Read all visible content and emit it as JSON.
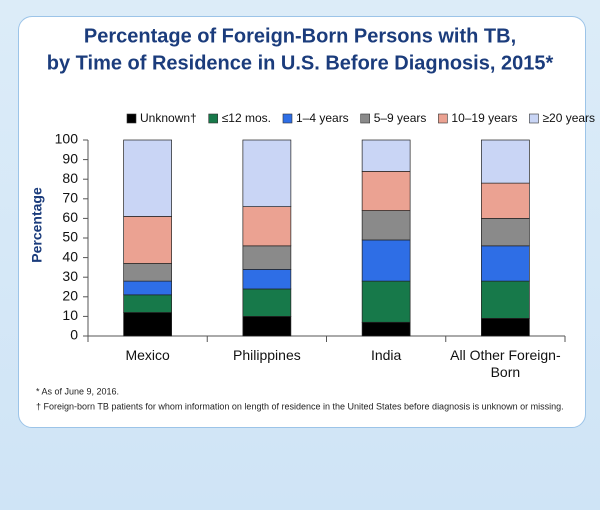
{
  "chart_data": {
    "type": "stacked_bar",
    "title": [
      "Percentage of Foreign-Born Persons with TB,",
      "by Time of Residence in U.S. Before Diagnosis, 2015*"
    ],
    "y_label": "Percentage",
    "categories": [
      "Mexico",
      "Philippines",
      "India",
      "All Other Foreign-Born"
    ],
    "series": [
      {
        "name": "Unknown†",
        "color": "#000000",
        "values": [
          12,
          10,
          7,
          9
        ]
      },
      {
        "name": "≤12 mos.",
        "color": "#17794a",
        "values": [
          9,
          14,
          21,
          19
        ]
      },
      {
        "name": "1–4 years",
        "color": "#2e6ee6",
        "values": [
          7,
          10,
          21,
          18
        ]
      },
      {
        "name": "5–9 years",
        "color": "#8a8a8a",
        "values": [
          9,
          12,
          15,
          14
        ]
      },
      {
        "name": "10–19 years",
        "color": "#eba292",
        "values": [
          24,
          20,
          20,
          18
        ]
      },
      {
        "name": "≥20 years",
        "color": "#c9d5f5",
        "values": [
          39,
          34,
          16,
          22
        ]
      }
    ],
    "ylim": [
      0,
      100
    ],
    "yticks": [
      0,
      10,
      20,
      30,
      40,
      50,
      60,
      70,
      80,
      90,
      100
    ],
    "footnotes": [
      "* As of June 9, 2016.",
      "† Foreign-born TB patients for whom information on length of residence in the United States before diagnosis is unknown or missing."
    ]
  }
}
